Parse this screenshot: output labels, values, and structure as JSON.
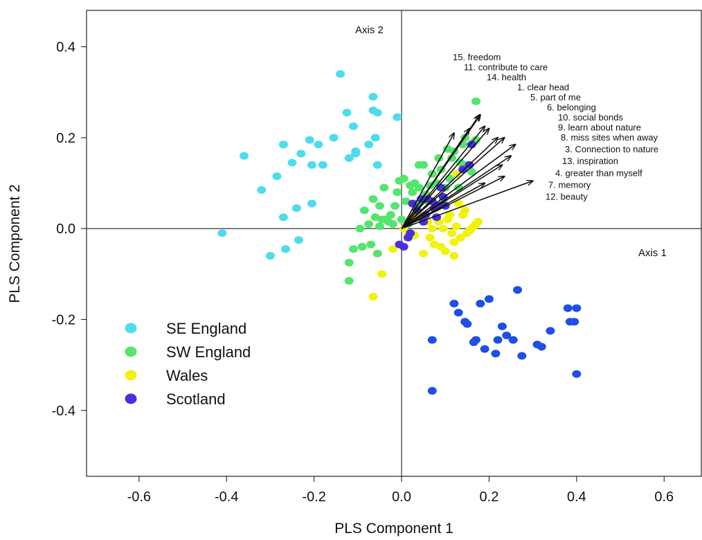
{
  "chart_data": {
    "type": "scatter",
    "xlabel": "PLS Component 1",
    "ylabel": "PLS Component 2",
    "xlim": [
      -0.72,
      0.685
    ],
    "ylim": [
      -0.545,
      0.48
    ],
    "xticks": [
      -0.6,
      -0.4,
      -0.2,
      0.0,
      0.2,
      0.4,
      0.6
    ],
    "yticks": [
      -0.4,
      -0.2,
      0.0,
      0.2,
      0.4
    ],
    "xtick_labels": [
      "-0.6",
      "-0.4",
      "-0.2",
      "0.0",
      "0.2",
      "0.4",
      "0.6"
    ],
    "ytick_labels": [
      "-0.4",
      "-0.2",
      "0.0",
      "0.2",
      "0.4"
    ],
    "axis_names": {
      "axis1": "Axis 1",
      "axis2": "Axis 2"
    },
    "legend_position": "bottom-left",
    "series": [
      {
        "name": "SE England",
        "color": "#4fdbee",
        "points": [
          [
            -0.41,
            -0.01
          ],
          [
            -0.36,
            0.16
          ],
          [
            -0.32,
            0.085
          ],
          [
            -0.3,
            -0.06
          ],
          [
            -0.285,
            0.115
          ],
          [
            -0.27,
            0.185
          ],
          [
            -0.27,
            0.025
          ],
          [
            -0.265,
            -0.045
          ],
          [
            -0.25,
            0.145
          ],
          [
            -0.24,
            0.045
          ],
          [
            -0.235,
            -0.025
          ],
          [
            -0.23,
            0.165
          ],
          [
            -0.21,
            0.195
          ],
          [
            -0.205,
            0.14
          ],
          [
            -0.205,
            0.055
          ],
          [
            -0.19,
            0.185
          ],
          [
            -0.18,
            0.14
          ],
          [
            -0.155,
            0.2
          ],
          [
            -0.14,
            0.34
          ],
          [
            -0.125,
            0.255
          ],
          [
            -0.12,
            0.155
          ],
          [
            -0.11,
            0.225
          ],
          [
            -0.105,
            0.17
          ],
          [
            -0.105,
            0.165
          ],
          [
            -0.075,
            0.185
          ],
          [
            -0.065,
            0.29
          ],
          [
            -0.065,
            0.26
          ],
          [
            -0.06,
            0.2
          ],
          [
            -0.055,
            0.255
          ],
          [
            -0.055,
            0.14
          ],
          [
            -0.01,
            0.245
          ]
        ]
      },
      {
        "name": "SW England",
        "color": "#55e46e",
        "points": [
          [
            0.17,
            0.28
          ],
          [
            -0.12,
            -0.075
          ],
          [
            -0.12,
            -0.115
          ],
          [
            -0.11,
            -0.045
          ],
          [
            -0.095,
            0.0
          ],
          [
            -0.09,
            -0.04
          ],
          [
            -0.085,
            0.04
          ],
          [
            -0.075,
            0.01
          ],
          [
            -0.07,
            -0.035
          ],
          [
            -0.065,
            0.065
          ],
          [
            -0.06,
            0.025
          ],
          [
            -0.055,
            -0.055
          ],
          [
            -0.05,
            0.005
          ],
          [
            -0.05,
            0.05
          ],
          [
            -0.045,
            0.02
          ],
          [
            -0.04,
            0.09
          ],
          [
            -0.035,
            0.02
          ],
          [
            -0.03,
            0.015
          ],
          [
            -0.025,
            0.03
          ],
          [
            -0.02,
            0.01
          ],
          [
            -0.015,
            0.05
          ],
          [
            -0.01,
            0.08
          ],
          [
            -0.005,
            0.105
          ],
          [
            0.0,
            0.02
          ],
          [
            0.005,
            0.11
          ],
          [
            0.01,
            0.06
          ],
          [
            0.015,
            0.01
          ],
          [
            0.02,
            0.095
          ],
          [
            0.025,
            0.08
          ],
          [
            0.03,
            0.1
          ],
          [
            0.035,
            0.055
          ],
          [
            0.04,
            0.09
          ],
          [
            0.04,
            0.14
          ],
          [
            0.05,
            0.14
          ],
          [
            0.055,
            0.075
          ],
          [
            0.06,
            0.06
          ],
          [
            0.065,
            0.095
          ],
          [
            0.07,
            0.12
          ],
          [
            0.075,
            0.045
          ],
          [
            0.08,
            0.1
          ],
          [
            0.085,
            0.155
          ],
          [
            0.09,
            0.13
          ],
          [
            0.095,
            0.06
          ],
          [
            0.1,
            0.09
          ],
          [
            0.105,
            0.175
          ],
          [
            0.11,
            0.11
          ],
          [
            0.115,
            0.155
          ],
          [
            0.12,
            0.17
          ],
          [
            0.13,
            0.09
          ],
          [
            0.135,
            0.145
          ],
          [
            0.14,
            0.185
          ],
          [
            0.145,
            0.2
          ],
          [
            0.15,
            0.14
          ],
          [
            0.16,
            0.125
          ],
          [
            0.165,
            0.19
          ],
          [
            0.17,
            0.195
          ]
        ]
      },
      {
        "name": "Wales",
        "color": "#f2f20a",
        "points": [
          [
            -0.065,
            -0.15
          ],
          [
            -0.045,
            -0.1
          ],
          [
            -0.02,
            -0.045
          ],
          [
            0.005,
            0.0
          ],
          [
            0.015,
            -0.015
          ],
          [
            0.025,
            0.025
          ],
          [
            0.03,
            -0.015
          ],
          [
            0.04,
            0.03
          ],
          [
            0.045,
            0.02
          ],
          [
            0.05,
            -0.055
          ],
          [
            0.055,
            0.03
          ],
          [
            0.06,
            0.015
          ],
          [
            0.065,
            -0.02
          ],
          [
            0.07,
            0.0
          ],
          [
            0.075,
            -0.035
          ],
          [
            0.08,
            0.045
          ],
          [
            0.085,
            0.015
          ],
          [
            0.09,
            -0.04
          ],
          [
            0.095,
            0.0
          ],
          [
            0.1,
            -0.05
          ],
          [
            0.105,
            0.02
          ],
          [
            0.11,
            0.03
          ],
          [
            0.115,
            -0.01
          ],
          [
            0.12,
            -0.03
          ],
          [
            0.12,
            -0.06
          ],
          [
            0.125,
            0.005
          ],
          [
            0.13,
            0.055
          ],
          [
            0.135,
            -0.02
          ],
          [
            0.14,
            0.03
          ],
          [
            0.145,
            0.04
          ],
          [
            0.15,
            -0.01
          ],
          [
            0.155,
            -0.005
          ],
          [
            0.16,
            0.0
          ],
          [
            0.165,
            0.005
          ],
          [
            0.17,
            0.01
          ],
          [
            0.175,
            0.015
          ],
          [
            0.125,
            0.12
          ]
        ]
      },
      {
        "name": "Scotland",
        "color": "#4a2fe0",
        "points": [
          [
            -0.005,
            -0.035
          ],
          [
            0.005,
            -0.04
          ],
          [
            0.015,
            -0.02
          ],
          [
            0.02,
            -0.01
          ],
          [
            0.025,
            0.055
          ],
          [
            0.035,
            0.04
          ],
          [
            0.045,
            0.065
          ],
          [
            0.05,
            0.015
          ],
          [
            0.055,
            0.03
          ],
          [
            0.06,
            0.065
          ],
          [
            0.07,
            0.06
          ],
          [
            0.075,
            0.045
          ],
          [
            0.08,
            0.025
          ],
          [
            0.085,
            0.05
          ],
          [
            0.09,
            0.09
          ],
          [
            0.095,
            0.07
          ],
          [
            0.1,
            0.05
          ],
          [
            0.14,
            0.13
          ],
          [
            0.155,
            0.14
          ],
          [
            0.16,
            0.185
          ]
        ]
      },
      {
        "color": "#1e4fe6",
        "points": [
          [
            0.07,
            -0.357
          ],
          [
            0.07,
            -0.245
          ],
          [
            0.12,
            -0.165
          ],
          [
            0.13,
            -0.185
          ],
          [
            0.145,
            -0.205
          ],
          [
            0.15,
            -0.21
          ],
          [
            0.165,
            -0.25
          ],
          [
            0.17,
            -0.245
          ],
          [
            0.18,
            -0.165
          ],
          [
            0.19,
            -0.265
          ],
          [
            0.2,
            -0.155
          ],
          [
            0.215,
            -0.275
          ],
          [
            0.22,
            -0.245
          ],
          [
            0.23,
            -0.215
          ],
          [
            0.24,
            -0.235
          ],
          [
            0.255,
            -0.245
          ],
          [
            0.265,
            -0.135
          ],
          [
            0.275,
            -0.28
          ],
          [
            0.31,
            -0.255
          ],
          [
            0.32,
            -0.26
          ],
          [
            0.34,
            -0.225
          ],
          [
            0.38,
            -0.175
          ],
          [
            0.385,
            -0.205
          ],
          [
            0.395,
            -0.205
          ],
          [
            0.4,
            -0.175
          ],
          [
            0.4,
            -0.32
          ]
        ]
      }
    ],
    "vectors": [
      {
        "label": "15. freedom",
        "x": 0.18,
        "y": 0.25
      },
      {
        "label": "11. contribute to care",
        "x": 0.178,
        "y": 0.25
      },
      {
        "label": "14. health",
        "x": 0.2,
        "y": 0.22
      },
      {
        "label": "1. clear head",
        "x": 0.19,
        "y": 0.225
      },
      {
        "label": "5. part of me",
        "x": 0.155,
        "y": 0.22
      },
      {
        "label": "6. belonging",
        "x": 0.12,
        "y": 0.21
      },
      {
        "label": "10. social bonds",
        "x": 0.22,
        "y": 0.2
      },
      {
        "label": "9. learn about nature",
        "x": 0.235,
        "y": 0.2
      },
      {
        "label": "8. miss sites when away",
        "x": 0.26,
        "y": 0.185
      },
      {
        "label": "3. Connection to nature",
        "x": 0.25,
        "y": 0.16
      },
      {
        "label": "13. inspiration",
        "x": 0.23,
        "y": 0.14
      },
      {
        "label": "4. greater than myself",
        "x": 0.235,
        "y": 0.115
      },
      {
        "label": "7. memory",
        "x": 0.3,
        "y": 0.105
      },
      {
        "label": "12. beauty",
        "x": 0.19,
        "y": 0.1
      }
    ],
    "legend": [
      "SE England",
      "SW England",
      "Wales",
      "Scotland"
    ]
  }
}
